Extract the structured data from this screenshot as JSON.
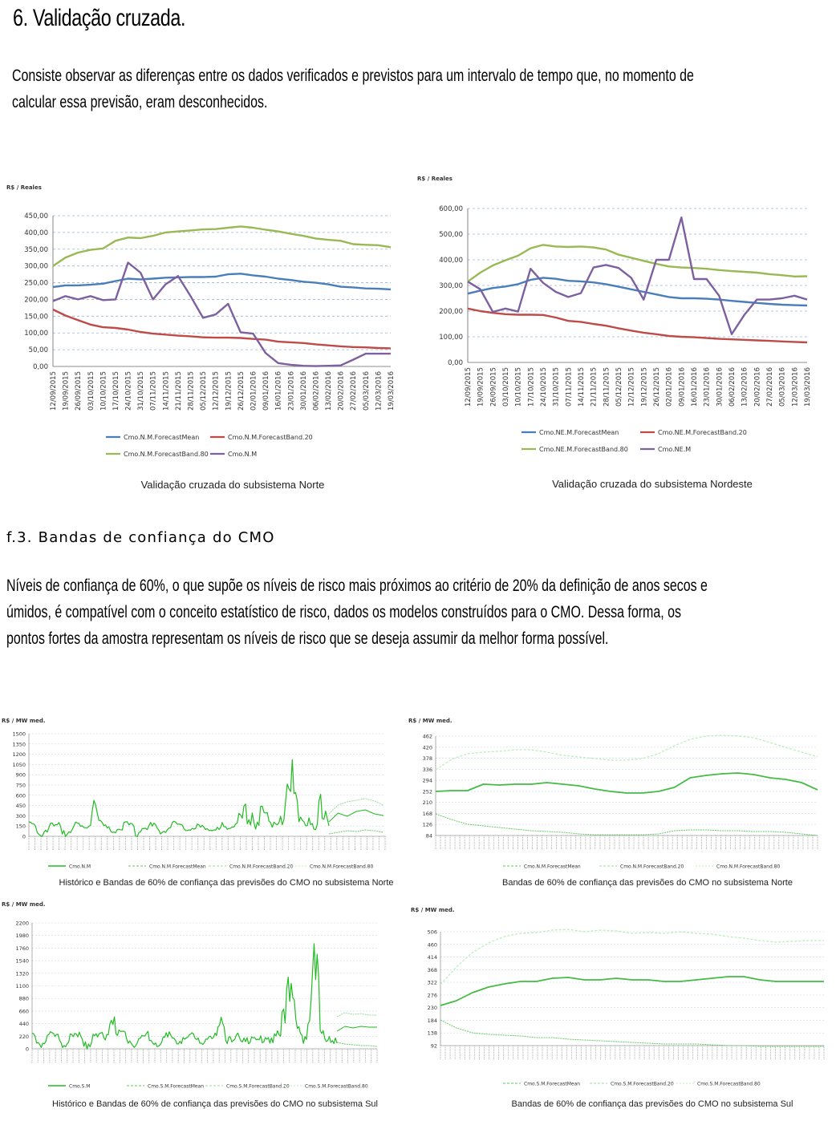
{
  "section6": {
    "heading": "6. Validação cruzada.",
    "para_lines": [
      "Consiste observar as diferenças entre os dados verificados e  previstos para um intervalo de tempo que, no momento de",
      "calcular essa previsão, eram desconhecidos."
    ]
  },
  "sectionf3": {
    "heading": "f.3. Bandas de confiança do CMO",
    "para_lines": [
      "Níveis de confiança de 60%, o que supõe os níveis de risco mais próximos ao critério de 20% da definição de anos secos e",
      "úmidos, é compatível com o conceito estatístico de risco, dados os modelos construídos para o CMO. Dessa forma, os",
      "pontos fortes da amostra representam os níveis de risco que se deseja assumir da melhor forma possível."
    ]
  },
  "chart_data": [
    {
      "type": "line",
      "unit_label": "R$ / Reales",
      "caption": "Validação cruzada do subsistema Norte",
      "ylim": [
        0,
        450
      ],
      "yticks": [
        "450,00",
        "400,00",
        "350,00",
        "300,00",
        "250,00",
        "200,00",
        "150,00",
        "100,00",
        "50,00",
        "0,00"
      ],
      "categories": [
        "12/09/2015",
        "19/09/2015",
        "26/09/2015",
        "03/10/2015",
        "10/10/2015",
        "17/10/2015",
        "24/10/2015",
        "31/10/2015",
        "07/11/2015",
        "14/11/2015",
        "21/11/2015",
        "28/11/2015",
        "05/12/2015",
        "12/12/2015",
        "19/12/2015",
        "26/12/2015",
        "02/01/2016",
        "09/01/2016",
        "16/01/2016",
        "23/01/2016",
        "30/01/2016",
        "06/02/2016",
        "13/02/2016",
        "20/02/2016",
        "27/02/2016",
        "05/03/2016",
        "12/03/2016",
        "19/03/2016"
      ],
      "series": [
        {
          "name": "Cmo.N.M.ForecastMean",
          "color": "#4a7ebb",
          "values": [
            237,
            242,
            242,
            244,
            247,
            255,
            262,
            260,
            262,
            265,
            266,
            267,
            267,
            268,
            275,
            277,
            272,
            268,
            262,
            258,
            253,
            250,
            245,
            238,
            236,
            233,
            232,
            230
          ]
        },
        {
          "name": "Cmo.N.M.ForecastBand.20",
          "color": "#be4b48",
          "values": [
            170,
            152,
            138,
            125,
            117,
            115,
            110,
            103,
            98,
            95,
            92,
            90,
            87,
            86,
            86,
            85,
            82,
            80,
            74,
            72,
            70,
            66,
            63,
            60,
            58,
            57,
            55,
            54
          ]
        },
        {
          "name": "Cmo.N.M.ForecastBand.80",
          "color": "#98b954",
          "values": [
            300,
            325,
            340,
            348,
            352,
            375,
            385,
            383,
            390,
            400,
            403,
            406,
            409,
            410,
            414,
            418,
            414,
            408,
            403,
            396,
            390,
            382,
            378,
            375,
            365,
            363,
            362,
            356
          ]
        },
        {
          "name": "Cmo.N.M",
          "color": "#7d60a0",
          "values": [
            195,
            210,
            200,
            210,
            198,
            200,
            310,
            280,
            200,
            245,
            270,
            210,
            145,
            155,
            187,
            102,
            98,
            40,
            10,
            5,
            2,
            1,
            2,
            3,
            20,
            38,
            38,
            38
          ]
        }
      ]
    },
    {
      "type": "line",
      "unit_label": "R$ / Reales",
      "caption": "Validação cruzada do subsistema Nordeste",
      "ylim": [
        0,
        600
      ],
      "yticks": [
        "600,00",
        "500,00",
        "400,00",
        "300,00",
        "200,00",
        "100,00",
        "0,00"
      ],
      "categories": [
        "12/09/2015",
        "19/09/2015",
        "26/09/2015",
        "03/10/2015",
        "10/10/2015",
        "17/10/2015",
        "24/10/2015",
        "31/10/2015",
        "07/11/2015",
        "14/11/2015",
        "21/11/2015",
        "28/11/2015",
        "05/12/2015",
        "12/12/2015",
        "19/12/2015",
        "26/12/2015",
        "02/01/2016",
        "09/01/2016",
        "16/01/2016",
        "23/01/2016",
        "30/01/2016",
        "06/02/2016",
        "13/02/2016",
        "20/02/2016",
        "27/02/2016",
        "05/03/2016",
        "12/03/2016",
        "19/03/2016"
      ],
      "series": [
        {
          "name": "Cmo.NE.M.ForecastMean",
          "color": "#4a7ebb",
          "values": [
            268,
            280,
            290,
            296,
            305,
            322,
            330,
            326,
            318,
            316,
            312,
            305,
            295,
            285,
            275,
            265,
            255,
            250,
            250,
            248,
            245,
            240,
            236,
            232,
            228,
            225,
            223,
            222
          ]
        },
        {
          "name": "Cmo.NE.M.ForecastBand.20",
          "color": "#be4b48",
          "values": [
            210,
            200,
            193,
            188,
            186,
            186,
            185,
            175,
            162,
            158,
            150,
            143,
            133,
            124,
            116,
            110,
            103,
            100,
            98,
            95,
            92,
            90,
            88,
            86,
            84,
            82,
            80,
            78
          ]
        },
        {
          "name": "Cmo.NE.M.ForecastBand.80",
          "color": "#98b954",
          "values": [
            315,
            350,
            378,
            398,
            416,
            445,
            458,
            452,
            450,
            452,
            448,
            440,
            420,
            408,
            396,
            384,
            374,
            370,
            368,
            365,
            360,
            356,
            353,
            350,
            344,
            340,
            335,
            336
          ]
        },
        {
          "name": "Cmo.NE.M",
          "color": "#7d60a0",
          "values": [
            315,
            285,
            197,
            210,
            198,
            365,
            310,
            275,
            255,
            270,
            370,
            380,
            368,
            330,
            245,
            400,
            400,
            565,
            325,
            325,
            260,
            110,
            185,
            245,
            245,
            250,
            260,
            245
          ]
        }
      ]
    },
    {
      "type": "line",
      "unit_label": "R$ / MW med.",
      "caption": "Histórico e Bandas de 60% de confiança das previsões do CMO no subsistema Norte",
      "yticks": [
        "1500",
        "1350",
        "1200",
        "1050",
        "900",
        "750",
        "600",
        "450",
        "300",
        "150",
        "0"
      ],
      "series_names": [
        "Cmo.N.M",
        "Cmo.N.M.ForecastMean",
        "Cmo.N.M.ForecastBand.20",
        "Cmo.N.M.ForecastBand.80"
      ]
    },
    {
      "type": "line",
      "unit_label": "R$ / MW med.",
      "caption": "Bandas de 60% de confiança das previsões do CMO no subsistema Norte",
      "yticks": [
        "462",
        "420",
        "378",
        "336",
        "294",
        "252",
        "210",
        "168",
        "126",
        "84"
      ],
      "series_names": [
        "Cmo.N.M.ForecastMean",
        "Cmo.N.M.ForecastBand.20",
        "Cmo.N.M.ForecastBand.80"
      ]
    },
    {
      "type": "line",
      "unit_label": "R$ / MW med.",
      "caption": "Histórico e Bandas de 60% de confiança das previsões do CMO no subsistema Sul",
      "yticks": [
        "2200",
        "1980",
        "1760",
        "1540",
        "1320",
        "1100",
        "880",
        "660",
        "440",
        "220",
        "0"
      ],
      "series_names": [
        "Cmo.S.M",
        "Cmo.S.M.ForecastMean",
        "Cmo.S.M.ForecastBand.20",
        "Cmo.S.M.ForecastBand.80"
      ]
    },
    {
      "type": "line",
      "unit_label": "R$ / MW med.",
      "caption": "Bandas de 60% de confiança das previsões do CMO no subsistema Sul",
      "yticks": [
        "506",
        "460",
        "414",
        "368",
        "322",
        "276",
        "230",
        "184",
        "138",
        "92"
      ],
      "series_names": [
        "Cmo.S.M.ForecastMean",
        "Cmo.S.M.ForecastBand.20",
        "Cmo.S.M.ForecastBand.80"
      ]
    }
  ]
}
